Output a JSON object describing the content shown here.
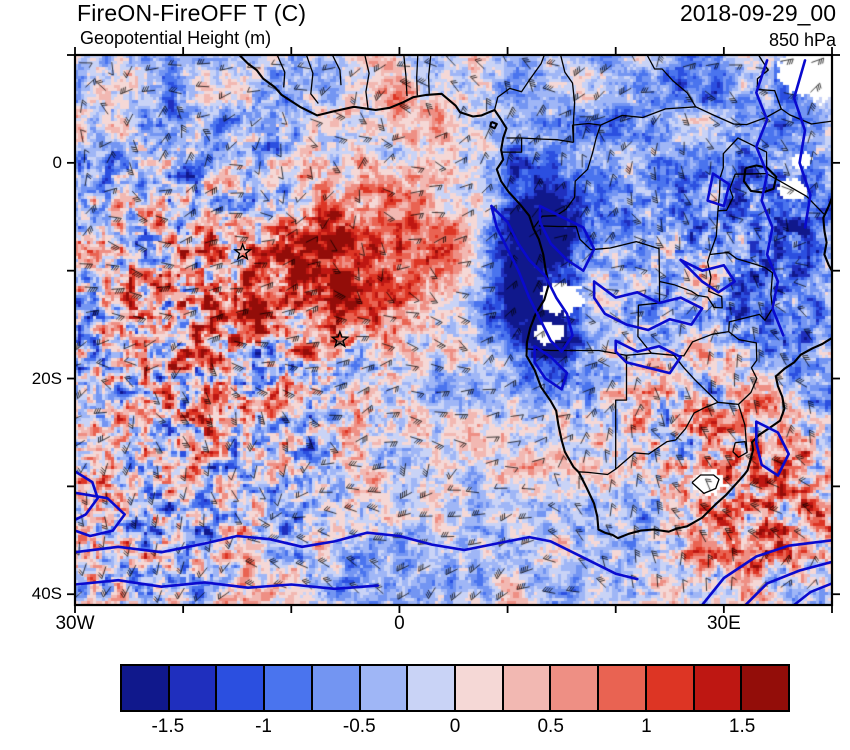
{
  "header": {
    "title": "FireON-FireOFF T (C)",
    "timestamp": "2018-09-29_00",
    "subtitle": "Geopotential Height (m)",
    "level": "850 hPa"
  },
  "axes": {
    "x_ticks": [
      {
        "label": "30W",
        "lon": -30
      },
      {
        "label": "0",
        "lon": 0
      },
      {
        "label": "30E",
        "lon": 30
      }
    ],
    "y_ticks": [
      {
        "label": "0",
        "lat": 0
      },
      {
        "label": "20S",
        "lat": -20
      },
      {
        "label": "40S",
        "lat": -40
      }
    ],
    "minor_tick_interval_deg": 10
  },
  "colorbar": {
    "labels": [
      "-1.5",
      "-1",
      "-0.5",
      "0",
      "0.5",
      "1",
      "1.5"
    ],
    "colors": [
      "#10188C",
      "#1F2FBE",
      "#2B4FE0",
      "#4A74EE",
      "#7395F2",
      "#9FB6F6",
      "#C9D3F6",
      "#F5D8D6",
      "#F2B8B2",
      "#EE8F84",
      "#E96352",
      "#DD3524",
      "#BE1712",
      "#930D09"
    ]
  },
  "chart_data": {
    "type": "heatmap",
    "title": "FireON-FireOFF T (C)",
    "subtitle": "Geopotential Height (m)",
    "timestamp": "2018-09-29_00",
    "pressure_level": "850 hPa",
    "variable": "FireON minus FireOFF temperature difference (C)",
    "overlays": [
      "wind barbs",
      "geopotential height contours (m)",
      "coastlines",
      "country borders",
      "terrain mask (white)"
    ],
    "lon_range": [
      -30,
      40
    ],
    "lat_range": [
      -41,
      10
    ],
    "x_tick_labels": [
      "30W",
      "0",
      "30E"
    ],
    "y_tick_labels": [
      "0",
      "20S",
      "40S"
    ],
    "colorbar_levels": [
      -1.5,
      -1.25,
      -1,
      -0.75,
      -0.5,
      -0.25,
      0,
      0.25,
      0.5,
      0.75,
      1,
      1.25,
      1.5
    ],
    "colorbar_labels": [
      "-1.5",
      "-1",
      "-0.5",
      "0",
      "0.5",
      "1",
      "1.5"
    ],
    "palette": [
      "#10188C",
      "#1F2FBE",
      "#2B4FE0",
      "#4A74EE",
      "#7395F2",
      "#9FB6F6",
      "#C9D3F6",
      "#F5D8D6",
      "#F2B8B2",
      "#EE8F84",
      "#E96352",
      "#DD3524",
      "#BE1712",
      "#930D09"
    ],
    "contour_color": "#0A0ACE",
    "markers": [
      {
        "type": "star",
        "lon": -14.5,
        "lat": -8.3
      },
      {
        "type": "star",
        "lon": -5.5,
        "lat": -16.4
      }
    ],
    "anomaly_regions": [
      {
        "name": "warm-tropical-atlantic",
        "lon": -6,
        "lat": -9,
        "rlon": 8,
        "rlat": 4.5,
        "amp": 1.0
      },
      {
        "name": "warm-tropical-atlantic-broad",
        "lon": -3,
        "lat": -13,
        "rlon": 13,
        "rlat": 7,
        "amp": 0.4
      },
      {
        "name": "cool-angola-coast",
        "lon": 11.5,
        "lat": -9,
        "rlon": 3.5,
        "rlat": 5.5,
        "amp": -1.8
      },
      {
        "name": "cool-congo",
        "lon": 16,
        "lat": -5,
        "rlon": 4.5,
        "rlat": 4,
        "amp": -1.0
      },
      {
        "name": "cool-angola-south",
        "lon": 14,
        "lat": -16,
        "rlon": 3.5,
        "rlat": 3.5,
        "amp": -1.2
      },
      {
        "name": "cool-east-africa",
        "lon": 33,
        "lat": -4,
        "rlon": 5.5,
        "rlat": 6,
        "amp": -0.9
      },
      {
        "name": "cool-mozambique",
        "lon": 37,
        "lat": -14,
        "rlon": 4.5,
        "rlat": 5,
        "amp": -0.9
      },
      {
        "name": "cool-north-band",
        "lon": 27,
        "lat": 8,
        "rlon": 9,
        "rlat": 4,
        "amp": -0.5
      },
      {
        "name": "cool-subtropical-atlantic",
        "lon": 4,
        "lat": -30,
        "rlon": 16,
        "rlat": 8,
        "amp": -0.3
      },
      {
        "name": "cool-northwest",
        "lon": -22,
        "lat": 4,
        "rlon": 8,
        "rlat": 5,
        "amp": -0.45
      },
      {
        "name": "warm-southeast-coast",
        "lon": 34,
        "lat": -31,
        "rlon": 5.5,
        "rlat": 4.5,
        "amp": 0.75
      }
    ],
    "noise_regions": [
      {
        "name": "atlantic-speckle",
        "lon": -19,
        "lat": -17,
        "rlon": 11,
        "rlat": 12,
        "amp": 1.05
      },
      {
        "name": "southeast-speckle",
        "lon": 34,
        "lat": -31,
        "rlon": 6.5,
        "rlat": 5.5,
        "amp": 0.75
      },
      {
        "name": "east-speckle",
        "lon": 31,
        "lat": -9,
        "rlon": 8,
        "rlat": 7,
        "amp": 0.45
      },
      {
        "name": "south-atlantic-far",
        "lon": -26,
        "lat": -36,
        "rlon": 7,
        "rlat": 5,
        "amp": 0.5
      },
      {
        "name": "kalahari-speckle",
        "lon": 24,
        "lat": -24,
        "rlon": 5,
        "rlat": 4,
        "amp": 0.4
      }
    ],
    "terrain_mask": [
      {
        "name": "ethiopian-highlands",
        "lon": 38.5,
        "lat": 8.5,
        "rlon": 3.2,
        "rlat": 2.4
      },
      {
        "name": "east-rift",
        "lon": 36.3,
        "lat": -2.5,
        "rlon": 1.1,
        "rlat": 0.9
      },
      {
        "name": "angola-highlands",
        "lon": 15.0,
        "lat": -12.6,
        "rlon": 1.7,
        "rlat": 1.3
      },
      {
        "name": "angola-highlands-south",
        "lon": 13.9,
        "lat": -15.8,
        "rlon": 1.2,
        "rlat": 0.9
      },
      {
        "name": "lesotho-highlands",
        "lon": 28.7,
        "lat": -29.7,
        "rlon": 1.3,
        "rlat": 1.0
      },
      {
        "name": "mt-kenya",
        "lon": 37.3,
        "lat": 0.2,
        "rlon": 0.8,
        "rlat": 0.7
      }
    ]
  }
}
